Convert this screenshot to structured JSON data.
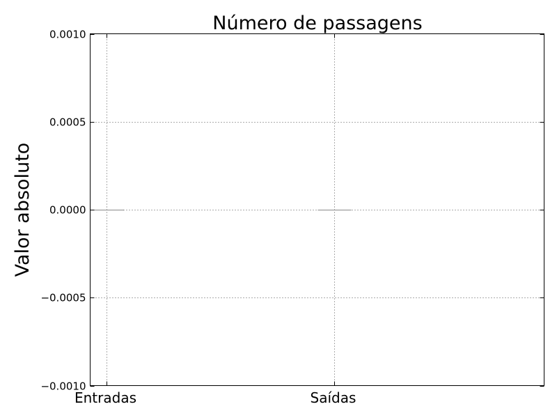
{
  "chart_data": {
    "type": "bar",
    "title": "Número de passagens",
    "xlabel": "",
    "ylabel": "Valor absoluto",
    "categories": [
      "Entradas",
      "Saídas"
    ],
    "values": [
      0,
      0
    ],
    "ylim": [
      -0.001,
      0.001
    ],
    "yticks": [
      0.001,
      0.0005,
      0,
      -0.0005,
      -0.001
    ],
    "ytick_labels": [
      "0.0010",
      "0.0005",
      "0.0000",
      "−0.0005",
      "−0.0010"
    ],
    "grid": true,
    "grid_style": "dotted",
    "bar_color": "#888888"
  }
}
